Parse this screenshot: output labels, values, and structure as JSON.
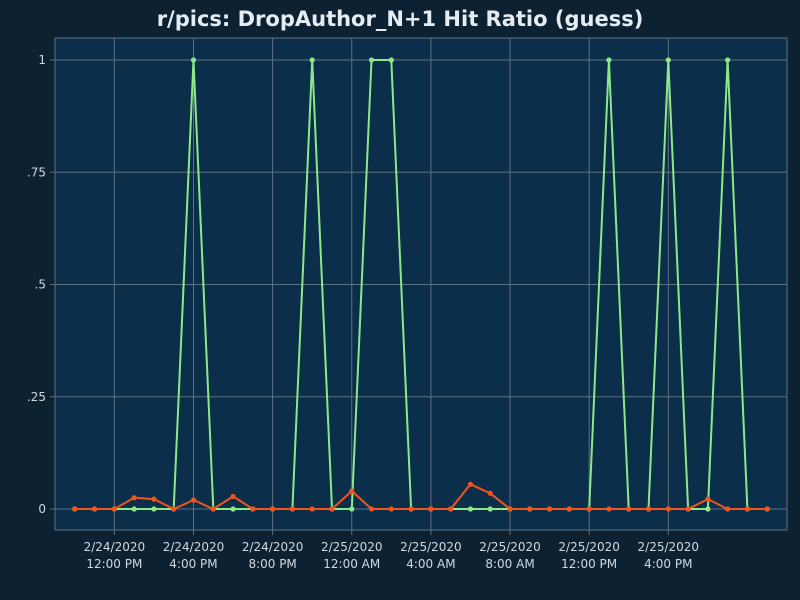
{
  "chart_data": {
    "type": "line",
    "title": "r/pics: DropAuthor_N+1 Hit Ratio (guess)",
    "xlabel": "",
    "ylabel": "",
    "ylim": [
      0,
      1
    ],
    "y_ticks": [
      {
        "value": 0,
        "label": "0"
      },
      {
        "value": 0.25,
        "label": ".25"
      },
      {
        "value": 0.5,
        "label": ".5"
      },
      {
        "value": 0.75,
        "label": ".75"
      },
      {
        "value": 1,
        "label": "1"
      }
    ],
    "xlim": [
      "2020-02-24T09:00",
      "2020-02-25T22:00"
    ],
    "x_ticks": [
      {
        "value": "2020-02-24T12:00",
        "date": "2/24/2020",
        "time": "12:00 PM"
      },
      {
        "value": "2020-02-24T16:00",
        "date": "2/24/2020",
        "time": "4:00 PM"
      },
      {
        "value": "2020-02-24T20:00",
        "date": "2/24/2020",
        "time": "8:00 PM"
      },
      {
        "value": "2020-02-25T00:00",
        "date": "2/25/2020",
        "time": "12:00 AM"
      },
      {
        "value": "2020-02-25T04:00",
        "date": "2/25/2020",
        "time": "4:00 AM"
      },
      {
        "value": "2020-02-25T08:00",
        "date": "2/25/2020",
        "time": "8:00 AM"
      },
      {
        "value": "2020-02-25T12:00",
        "date": "2/25/2020",
        "time": "12:00 PM"
      },
      {
        "value": "2020-02-25T16:00",
        "date": "2/25/2020",
        "time": "4:00 PM"
      }
    ],
    "grid": true,
    "x": [
      "2020-02-24T10:00",
      "2020-02-24T11:00",
      "2020-02-24T12:00",
      "2020-02-24T13:00",
      "2020-02-24T14:00",
      "2020-02-24T15:00",
      "2020-02-24T16:00",
      "2020-02-24T17:00",
      "2020-02-24T18:00",
      "2020-02-24T19:00",
      "2020-02-24T20:00",
      "2020-02-24T21:00",
      "2020-02-24T22:00",
      "2020-02-24T23:00",
      "2020-02-25T00:00",
      "2020-02-25T01:00",
      "2020-02-25T02:00",
      "2020-02-25T03:00",
      "2020-02-25T04:00",
      "2020-02-25T05:00",
      "2020-02-25T06:00",
      "2020-02-25T07:00",
      "2020-02-25T08:00",
      "2020-02-25T09:00",
      "2020-02-25T10:00",
      "2020-02-25T11:00",
      "2020-02-25T12:00",
      "2020-02-25T13:00",
      "2020-02-25T14:00",
      "2020-02-25T15:00",
      "2020-02-25T16:00",
      "2020-02-25T17:00",
      "2020-02-25T18:00",
      "2020-02-25T19:00",
      "2020-02-25T20:00",
      "2020-02-25T21:00"
    ],
    "series": [
      {
        "color": "#8ee88a",
        "values": [
          0,
          0,
          0,
          0,
          0,
          0,
          1,
          0,
          0,
          0,
          0,
          0,
          1,
          0,
          0,
          1,
          1,
          0,
          0,
          0,
          0,
          0,
          0,
          0,
          0,
          0,
          0,
          1,
          0,
          0,
          1,
          0,
          0,
          1,
          0,
          0
        ]
      },
      {
        "color": "#f2541b",
        "values": [
          0,
          0,
          0,
          0.025,
          0.022,
          0,
          0.02,
          0,
          0.028,
          0,
          0,
          0,
          0,
          0,
          0.04,
          0,
          0,
          0,
          0,
          0,
          0.055,
          0.035,
          0,
          0,
          0,
          0,
          0,
          0,
          0,
          0,
          0,
          0,
          0.022,
          0,
          0,
          0
        ]
      }
    ]
  },
  "colors": {
    "page_background": "#0c2233",
    "plot_background": "#0b2e4a",
    "grid": "#5f7180",
    "text": "#cfd9e0"
  }
}
